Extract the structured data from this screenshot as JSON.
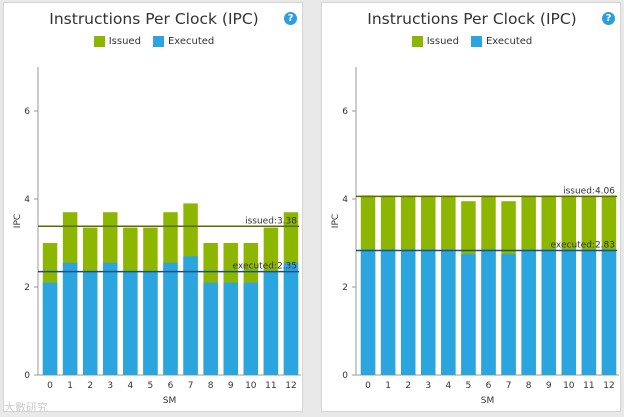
{
  "colors": {
    "issued": "#8db600",
    "executed": "#2aa5df",
    "issued_line": "#5a6e00",
    "executed_line": "#1b4f8a"
  },
  "watermark": "大數研究",
  "chart_data": [
    {
      "type": "bar",
      "title": "Instructions Per Clock (IPC)",
      "help": "?",
      "xlabel": "SM",
      "ylabel": "IPC",
      "ylim": [
        0,
        7
      ],
      "yticks": [
        0,
        2,
        4,
        6
      ],
      "categories": [
        "0",
        "1",
        "2",
        "3",
        "4",
        "5",
        "6",
        "7",
        "8",
        "9",
        "10",
        "11",
        "12"
      ],
      "series": [
        {
          "name": "Issued",
          "values": [
            3.0,
            3.7,
            3.35,
            3.7,
            3.35,
            3.35,
            3.7,
            3.9,
            3.0,
            3.0,
            3.0,
            3.35,
            3.7
          ]
        },
        {
          "name": "Executed",
          "values": [
            2.1,
            2.55,
            2.35,
            2.55,
            2.35,
            2.35,
            2.55,
            2.7,
            2.1,
            2.1,
            2.1,
            2.35,
            2.55
          ]
        }
      ],
      "reference_lines": [
        {
          "series": "Issued",
          "value": 3.38,
          "label": "issued:3.38"
        },
        {
          "series": "Executed",
          "value": 2.35,
          "label": "executed:2.35"
        }
      ]
    },
    {
      "type": "bar",
      "title": "Instructions Per Clock (IPC)",
      "help": "?",
      "xlabel": "SM",
      "ylabel": "IPC",
      "ylim": [
        0,
        7
      ],
      "yticks": [
        0,
        2,
        4,
        6
      ],
      "categories": [
        "0",
        "1",
        "2",
        "3",
        "4",
        "5",
        "6",
        "7",
        "8",
        "9",
        "10",
        "11",
        "12"
      ],
      "series": [
        {
          "name": "Issued",
          "values": [
            4.08,
            4.08,
            4.08,
            4.08,
            4.08,
            3.95,
            4.08,
            3.95,
            4.08,
            4.08,
            4.08,
            4.08,
            4.08
          ]
        },
        {
          "name": "Executed",
          "values": [
            2.85,
            2.85,
            2.85,
            2.85,
            2.85,
            2.75,
            2.85,
            2.75,
            2.85,
            2.85,
            2.85,
            2.85,
            2.85
          ]
        }
      ],
      "reference_lines": [
        {
          "series": "Issued",
          "value": 4.06,
          "label": "issued:4.06"
        },
        {
          "series": "Executed",
          "value": 2.83,
          "label": "executed:2.83"
        }
      ]
    }
  ]
}
